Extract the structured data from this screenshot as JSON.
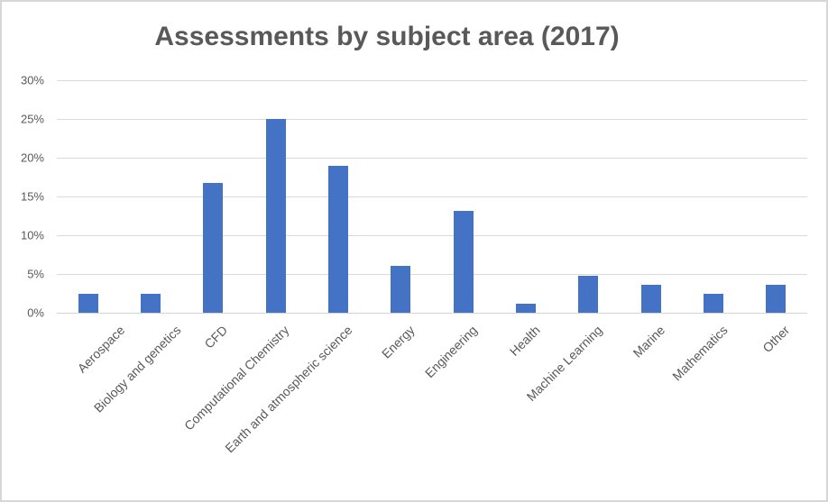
{
  "chart_data": {
    "type": "bar",
    "title": "Assessments by subject area (2017)",
    "categories": [
      "Aerospace",
      "Biology and genetics",
      "CFD",
      "Computational Chemistry",
      "Earth and atmospheric science",
      "Energy",
      "Engineering",
      "Health",
      "Machine Learning",
      "Marine",
      "Mathematics",
      "Other"
    ],
    "values": [
      2.4,
      2.4,
      16.7,
      25.0,
      19.0,
      6.0,
      13.1,
      1.2,
      4.8,
      3.6,
      2.4,
      3.6
    ],
    "unit": "%",
    "xlabel": "",
    "ylabel": "",
    "ylim": [
      0,
      30
    ],
    "y_ticks": [
      {
        "value": 0,
        "label": "0%"
      },
      {
        "value": 5,
        "label": "5%"
      },
      {
        "value": 10,
        "label": "10%"
      },
      {
        "value": 15,
        "label": "15%"
      },
      {
        "value": 20,
        "label": "20%"
      },
      {
        "value": 25,
        "label": "25%"
      },
      {
        "value": 30,
        "label": "30%"
      }
    ],
    "grid": true,
    "legend": "none",
    "x_label_rotation_deg": -45,
    "colors": {
      "bar": "#4472C4",
      "grid": "#D9D9D9",
      "axis": "#D4D4D4",
      "text": "#595959",
      "title": "#595959",
      "border": "#D7D7D7",
      "background": "#FFFFFF"
    }
  }
}
